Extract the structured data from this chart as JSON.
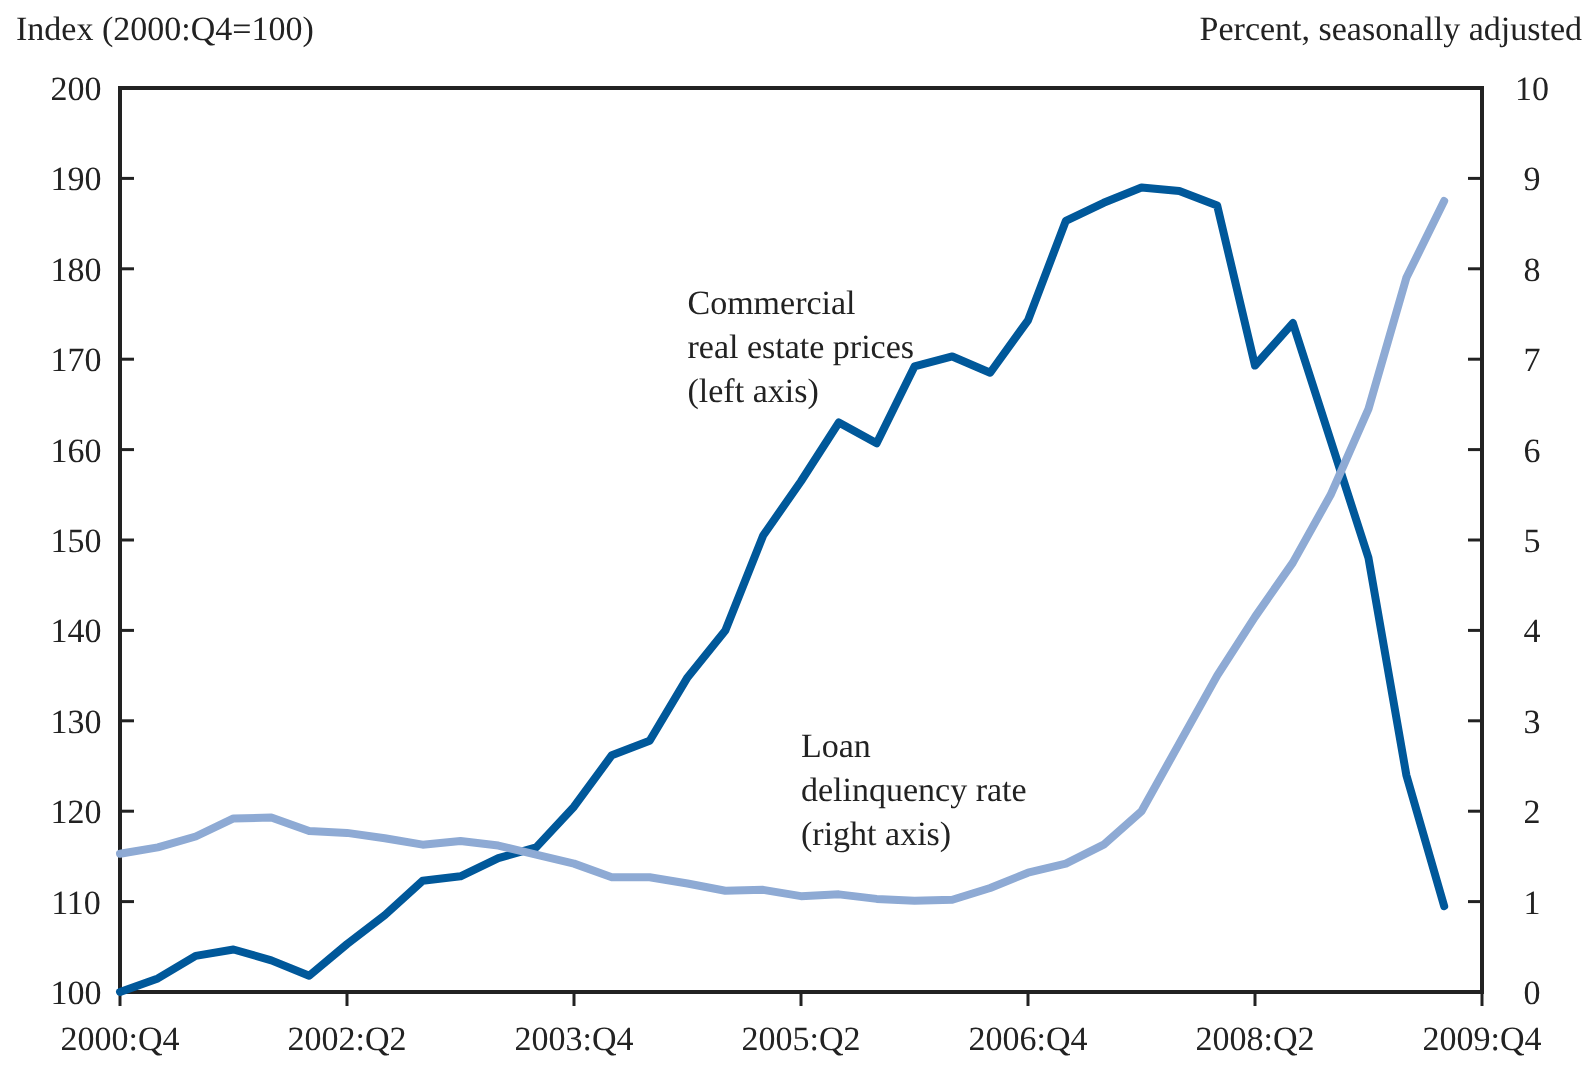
{
  "chart_data": {
    "type": "line",
    "ylabel": "Index (2000:Q4=100)",
    "y2label": "Percent, seasonally adjusted",
    "categories": [
      "2000:Q4",
      null,
      null,
      null,
      null,
      null,
      "2002:Q2",
      null,
      null,
      null,
      null,
      null,
      "2003:Q4",
      null,
      null,
      null,
      null,
      null,
      "2005:Q2",
      null,
      null,
      null,
      null,
      null,
      "2006:Q4",
      null,
      null,
      null,
      null,
      null,
      "2008:Q2",
      null,
      null,
      null,
      null,
      null,
      "2009:Q4"
    ],
    "ylim": [
      100,
      200
    ],
    "yticks": [
      100,
      110,
      120,
      130,
      140,
      150,
      160,
      170,
      180,
      190,
      200
    ],
    "y2lim": [
      0,
      10
    ],
    "y2ticks": [
      0,
      1,
      2,
      3,
      4,
      5,
      6,
      7,
      8,
      9,
      10
    ],
    "legend": false,
    "marker": "none",
    "line_style": "solid",
    "series": [
      {
        "name": "Commercial\nreal estate prices\n(left axis)",
        "color": "#00589a",
        "values": [
          100,
          101.5,
          104,
          104.7,
          103.5,
          101.8,
          105.3,
          108.5,
          112.3,
          112.8,
          114.8,
          116,
          120.5,
          126.2,
          127.8,
          134.8,
          140,
          150.5,
          156.5,
          163,
          160.7,
          169.2,
          170.3,
          168.5,
          174.3,
          185.3,
          187.3,
          189,
          188.6,
          187,
          169.3,
          174,
          161,
          148,
          124,
          109.5,
          null
        ]
      },
      {
        "name": "Loan\ndelinquency rate\n(right axis)",
        "color": "#8eaad4",
        "axis": "y2",
        "values": [
          1.53,
          1.6,
          1.72,
          1.92,
          1.93,
          1.78,
          1.76,
          1.7,
          1.63,
          1.67,
          1.62,
          1.52,
          1.42,
          1.27,
          1.27,
          1.2,
          1.12,
          1.13,
          1.06,
          1.08,
          1.03,
          1.01,
          1.02,
          1.15,
          1.32,
          1.42,
          1.63,
          2.0,
          2.75,
          3.5,
          4.15,
          4.75,
          5.5,
          6.45,
          7.9,
          8.75,
          null
        ]
      }
    ]
  }
}
